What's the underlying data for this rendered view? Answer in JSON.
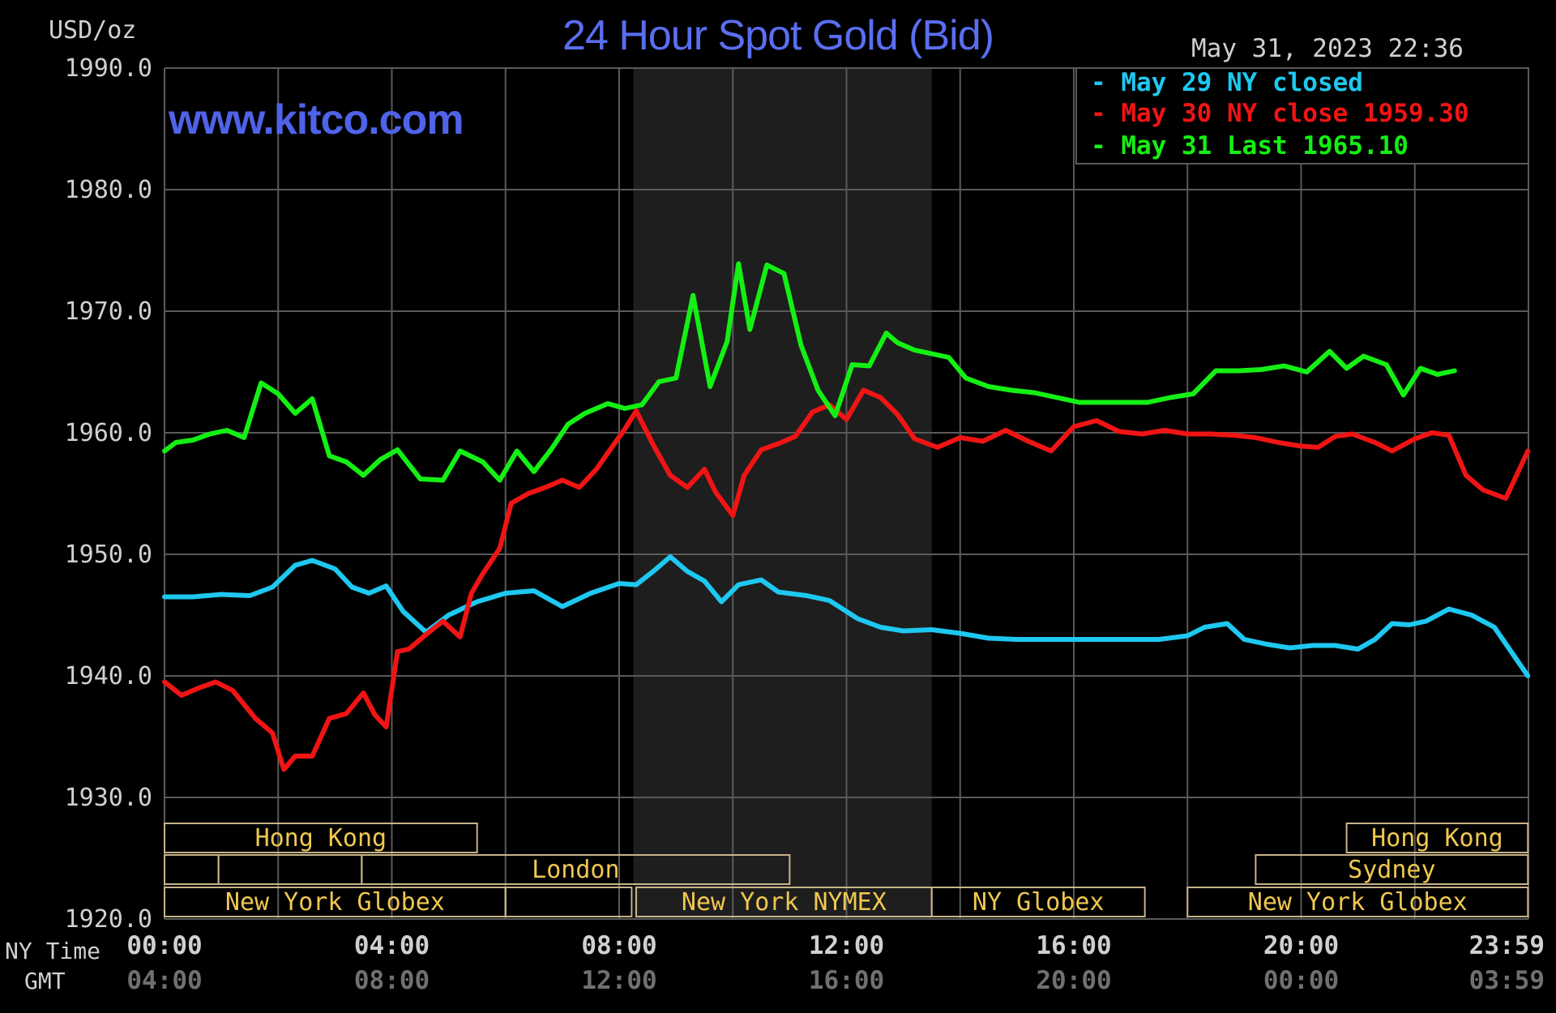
{
  "header": {
    "title": "24 Hour Spot Gold (Bid)",
    "units": "USD/oz",
    "timestamp": "May 31, 2023 22:36",
    "site": "www.kitco.com"
  },
  "colors": {
    "background": "#000000",
    "grid": "#5a5a5a",
    "nymex_shade": "#1e1e1e",
    "session_border": "#c8b48a",
    "session_text": "#f0c850",
    "axis_text": "#d0d0d0",
    "gmt_text": "#707070",
    "series_may29": "#1ec8f0",
    "series_may30": "#f01414",
    "series_may31": "#14f014"
  },
  "legend": [
    {
      "marker": "-",
      "text": "May 29 NY closed",
      "color": "#1ec8f0"
    },
    {
      "marker": "-",
      "text": "May 30 NY close 1959.30",
      "color": "#f01414"
    },
    {
      "marker": "-",
      "text": "May 31 Last 1965.10",
      "color": "#14f014"
    }
  ],
  "x_axis": {
    "ny_label": "NY Time",
    "gmt_label": "GMT",
    "ny_ticks": [
      "00:00",
      "04:00",
      "08:00",
      "12:00",
      "16:00",
      "20:00",
      "23:59"
    ],
    "gmt_ticks": [
      "04:00",
      "08:00",
      "12:00",
      "16:00",
      "20:00",
      "00:00",
      "03:59"
    ]
  },
  "sessions": [
    {
      "label": "Hong Kong",
      "row": 0,
      "start": 0,
      "end": 5.5
    },
    {
      "label": "",
      "row": 1,
      "start": 0,
      "end": 0.95
    },
    {
      "label": "",
      "row": 1,
      "start": 0.95,
      "end": 3.47
    },
    {
      "label": "London",
      "row": 1,
      "start": 3.47,
      "end": 11
    },
    {
      "label": "",
      "row": 2,
      "start": 0,
      "end": 6
    },
    {
      "label": "New York Globex",
      "row": 2,
      "start": 0,
      "end": 6
    },
    {
      "label": "",
      "row": 2,
      "start": 6,
      "end": 8.22
    },
    {
      "label": "New York NYMEX",
      "row": 2,
      "start": 8.3,
      "end": 13.5
    },
    {
      "label": "NY Globex",
      "row": 2,
      "start": 13.5,
      "end": 17.25
    },
    {
      "label": "Hong Kong",
      "row": 0,
      "start": 20.8,
      "end": 23.99
    },
    {
      "label": "Sydney",
      "row": 1,
      "start": 19.2,
      "end": 23.99
    },
    {
      "label": "New York Globex",
      "row": 2,
      "start": 18,
      "end": 23.99
    }
  ],
  "chart_data": {
    "type": "line",
    "title": "24 Hour Spot Gold (Bid)",
    "ylabel": "USD/oz",
    "xlabel": "NY Time",
    "ylim": [
      1920,
      1990
    ],
    "xlim": [
      0,
      24
    ],
    "y_ticks": [
      "1990.0",
      "1980.0",
      "1970.0",
      "1960.0",
      "1950.0",
      "1940.0",
      "1930.0",
      "1920.0"
    ],
    "grid": true,
    "legend_position": "top-right",
    "shaded_range_hours": [
      8.25,
      13.5
    ],
    "series": [
      {
        "name": "May 29 NY closed",
        "color": "#1ec8f0",
        "x": [
          0,
          0.5,
          1,
          1.5,
          1.9,
          2.3,
          2.6,
          3,
          3.3,
          3.6,
          3.9,
          4.2,
          4.6,
          5,
          5.5,
          6,
          6.5,
          7,
          7.5,
          8,
          8.3,
          8.6,
          8.9,
          9.2,
          9.5,
          9.8,
          10.1,
          10.5,
          10.8,
          11.3,
          11.7,
          12.2,
          12.6,
          13,
          13.5,
          14,
          14.5,
          15,
          15.5,
          16,
          16.5,
          17,
          17.5,
          18,
          18.3,
          18.7,
          19,
          19.4,
          19.8,
          20.2,
          20.6,
          21,
          21.3,
          21.6,
          21.9,
          22.2,
          22.6,
          23,
          23.4,
          23.99
        ],
        "y": [
          1946.5,
          1946.5,
          1946.7,
          1946.6,
          1947.3,
          1949.1,
          1949.5,
          1948.8,
          1947.3,
          1946.8,
          1947.4,
          1945.3,
          1943.6,
          1945,
          1946.1,
          1946.8,
          1947,
          1945.7,
          1946.8,
          1947.6,
          1947.5,
          1948.6,
          1949.8,
          1948.6,
          1947.8,
          1946.1,
          1947.5,
          1947.9,
          1946.9,
          1946.6,
          1946.2,
          1944.7,
          1944,
          1943.7,
          1943.8,
          1943.5,
          1943.1,
          1943,
          1943,
          1943,
          1943,
          1943,
          1943,
          1943.3,
          1944,
          1944.3,
          1943,
          1942.6,
          1942.3,
          1942.5,
          1942.5,
          1942.2,
          1943,
          1944.3,
          1944.2,
          1944.5,
          1945.5,
          1945,
          1944,
          1940
        ]
      },
      {
        "name": "May 30 NY close 1959.30",
        "color": "#f01414",
        "x": [
          0,
          0.3,
          0.6,
          0.9,
          1.2,
          1.6,
          1.9,
          2.1,
          2.3,
          2.6,
          2.9,
          3.2,
          3.5,
          3.7,
          3.9,
          4.1,
          4.3,
          4.6,
          4.9,
          5.2,
          5.4,
          5.6,
          5.9,
          6.1,
          6.4,
          6.7,
          7,
          7.3,
          7.6,
          7.9,
          8.1,
          8.3,
          8.6,
          8.9,
          9.2,
          9.5,
          9.7,
          10,
          10.2,
          10.5,
          10.8,
          11.1,
          11.4,
          11.7,
          12,
          12.3,
          12.6,
          12.9,
          13.2,
          13.6,
          14,
          14.4,
          14.8,
          15.2,
          15.6,
          16,
          16.4,
          16.8,
          17.2,
          17.6,
          18,
          18.4,
          18.8,
          19.2,
          19.6,
          20,
          20.3,
          20.6,
          20.9,
          21.3,
          21.6,
          22,
          22.3,
          22.6,
          22.9,
          23.2,
          23.6,
          23.99
        ],
        "y": [
          1939.5,
          1938.4,
          1939,
          1939.5,
          1938.8,
          1936.5,
          1935.3,
          1932.3,
          1933.4,
          1933.4,
          1936.5,
          1936.9,
          1938.6,
          1936.8,
          1935.8,
          1942,
          1942.2,
          1943.4,
          1944.5,
          1943.2,
          1946.8,
          1948.4,
          1950.5,
          1954.2,
          1955,
          1955.5,
          1956.1,
          1955.5,
          1957,
          1959,
          1960.3,
          1961.8,
          1959,
          1956.5,
          1955.5,
          1957,
          1955.1,
          1953.2,
          1956.5,
          1958.6,
          1959.1,
          1959.7,
          1961.7,
          1962.3,
          1961.1,
          1963.5,
          1962.9,
          1961.5,
          1959.5,
          1958.8,
          1959.6,
          1959.3,
          1960.2,
          1959.3,
          1958.5,
          1960.5,
          1961,
          1960.1,
          1959.9,
          1960.2,
          1959.9,
          1959.9,
          1959.8,
          1959.6,
          1959.2,
          1958.9,
          1958.8,
          1959.7,
          1959.9,
          1959.2,
          1958.5,
          1959.5,
          1960,
          1959.8,
          1956.5,
          1955.3,
          1954.6,
          1958.5
        ]
      },
      {
        "name": "May 31 Last 1965.10",
        "color": "#14f014",
        "x": [
          0,
          0.2,
          0.5,
          0.8,
          1.1,
          1.4,
          1.7,
          2,
          2.3,
          2.6,
          2.9,
          3.2,
          3.5,
          3.8,
          4.1,
          4.5,
          4.9,
          5.2,
          5.6,
          5.9,
          6.2,
          6.5,
          6.8,
          7.1,
          7.4,
          7.8,
          8.1,
          8.4,
          8.7,
          9,
          9.3,
          9.6,
          9.9,
          10.1,
          10.3,
          10.6,
          10.9,
          11.2,
          11.5,
          11.8,
          12.1,
          12.4,
          12.7,
          12.9,
          13.2,
          13.5,
          13.8,
          14.1,
          14.5,
          14.9,
          15.3,
          15.7,
          16.1,
          16.5,
          16.9,
          17.3,
          17.7,
          18.1,
          18.5,
          18.9,
          19.3,
          19.7,
          20.1,
          20.5,
          20.8,
          21.1,
          21.5,
          21.8,
          22.1,
          22.4,
          22.7
        ],
        "y": [
          1958.5,
          1959.2,
          1959.4,
          1959.9,
          1960.2,
          1959.6,
          1964.1,
          1963.2,
          1961.6,
          1962.8,
          1958.1,
          1957.6,
          1956.5,
          1957.8,
          1958.6,
          1956.2,
          1956.1,
          1958.5,
          1957.6,
          1956.1,
          1958.5,
          1956.8,
          1958.6,
          1960.7,
          1961.6,
          1962.4,
          1962,
          1962.3,
          1964.2,
          1964.5,
          1971.3,
          1963.8,
          1967.5,
          1973.9,
          1968.5,
          1973.8,
          1973.1,
          1967.2,
          1963.5,
          1961.4,
          1965.6,
          1965.5,
          1968.2,
          1967.4,
          1966.8,
          1966.5,
          1966.2,
          1964.5,
          1963.8,
          1963.5,
          1963.3,
          1962.9,
          1962.5,
          1962.5,
          1962.5,
          1962.5,
          1962.9,
          1963.2,
          1965.1,
          1965.1,
          1965.2,
          1965.5,
          1965,
          1966.7,
          1965.3,
          1966.3,
          1965.6,
          1963.1,
          1965.3,
          1964.8,
          1965.1
        ]
      }
    ]
  }
}
